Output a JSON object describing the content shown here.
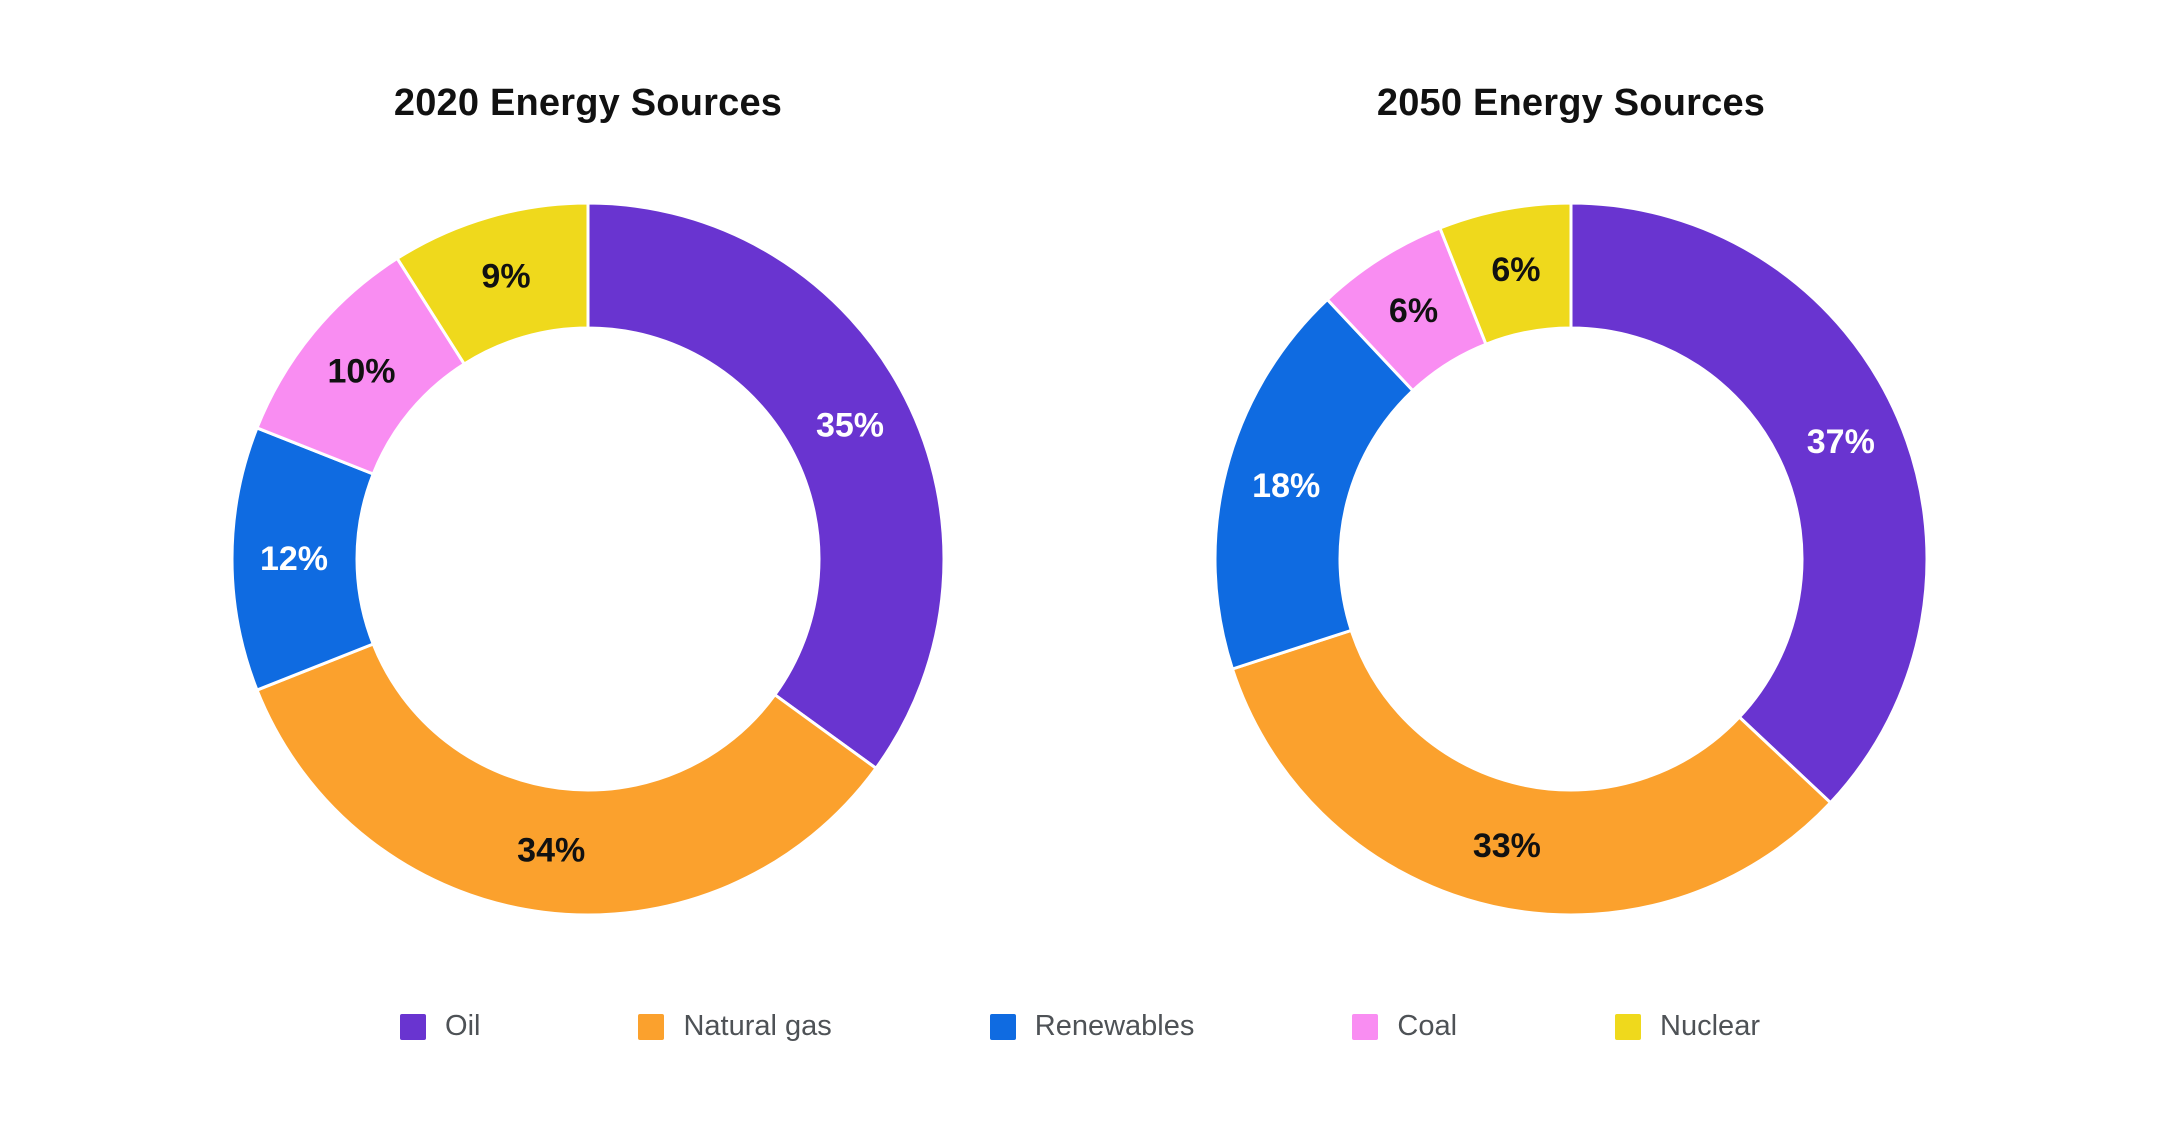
{
  "page": {
    "background_color": "#ffffff"
  },
  "palette": {
    "oil": "#6934d0",
    "natural_gas": "#fba12d",
    "renewables": "#0f6be1",
    "coal": "#f98df2",
    "nuclear": "#efd91c"
  },
  "legend": {
    "items": [
      {
        "label": "Oil",
        "color": "#6934d0"
      },
      {
        "label": "Natural gas",
        "color": "#fba12d"
      },
      {
        "label": "Renewables",
        "color": "#0f6be1"
      },
      {
        "label": "Coal",
        "color": "#f98df2"
      },
      {
        "label": "Nuclear",
        "color": "#efd91c"
      }
    ],
    "text_color": "#4e5256",
    "position": "bottom-center-shared"
  },
  "chart_data": [
    {
      "type": "pie",
      "subtype": "donut",
      "title": "2020 Energy Sources",
      "categories": [
        "Oil",
        "Natural gas",
        "Renewables",
        "Coal",
        "Nuclear"
      ],
      "values": [
        35,
        34,
        12,
        10,
        9
      ],
      "data_labels": [
        "35%",
        "34%",
        "12%",
        "10%",
        "9%"
      ],
      "colors": [
        "#6934d0",
        "#fba12d",
        "#0f6be1",
        "#f98df2",
        "#efd91c"
      ],
      "label_colors": [
        "#ffffff",
        "#111111",
        "#ffffff",
        "#111111",
        "#111111"
      ],
      "start_angle_deg_from_top": 0,
      "direction": "clockwise",
      "inner_radius_ratio": 0.65,
      "slice_separator_color": "#ffffff",
      "title_color": "#111111"
    },
    {
      "type": "pie",
      "subtype": "donut",
      "title": "2050 Energy Sources",
      "categories": [
        "Oil",
        "Natural gas",
        "Renewables",
        "Coal",
        "Nuclear"
      ],
      "values": [
        37,
        33,
        18,
        6,
        6
      ],
      "data_labels": [
        "37%",
        "33%",
        "18%",
        "6%",
        "6%"
      ],
      "colors": [
        "#6934d0",
        "#fba12d",
        "#0f6be1",
        "#f98df2",
        "#efd91c"
      ],
      "label_colors": [
        "#ffffff",
        "#111111",
        "#ffffff",
        "#111111",
        "#111111"
      ],
      "start_angle_deg_from_top": 0,
      "direction": "clockwise",
      "inner_radius_ratio": 0.65,
      "slice_separator_color": "#ffffff",
      "title_color": "#111111"
    }
  ]
}
